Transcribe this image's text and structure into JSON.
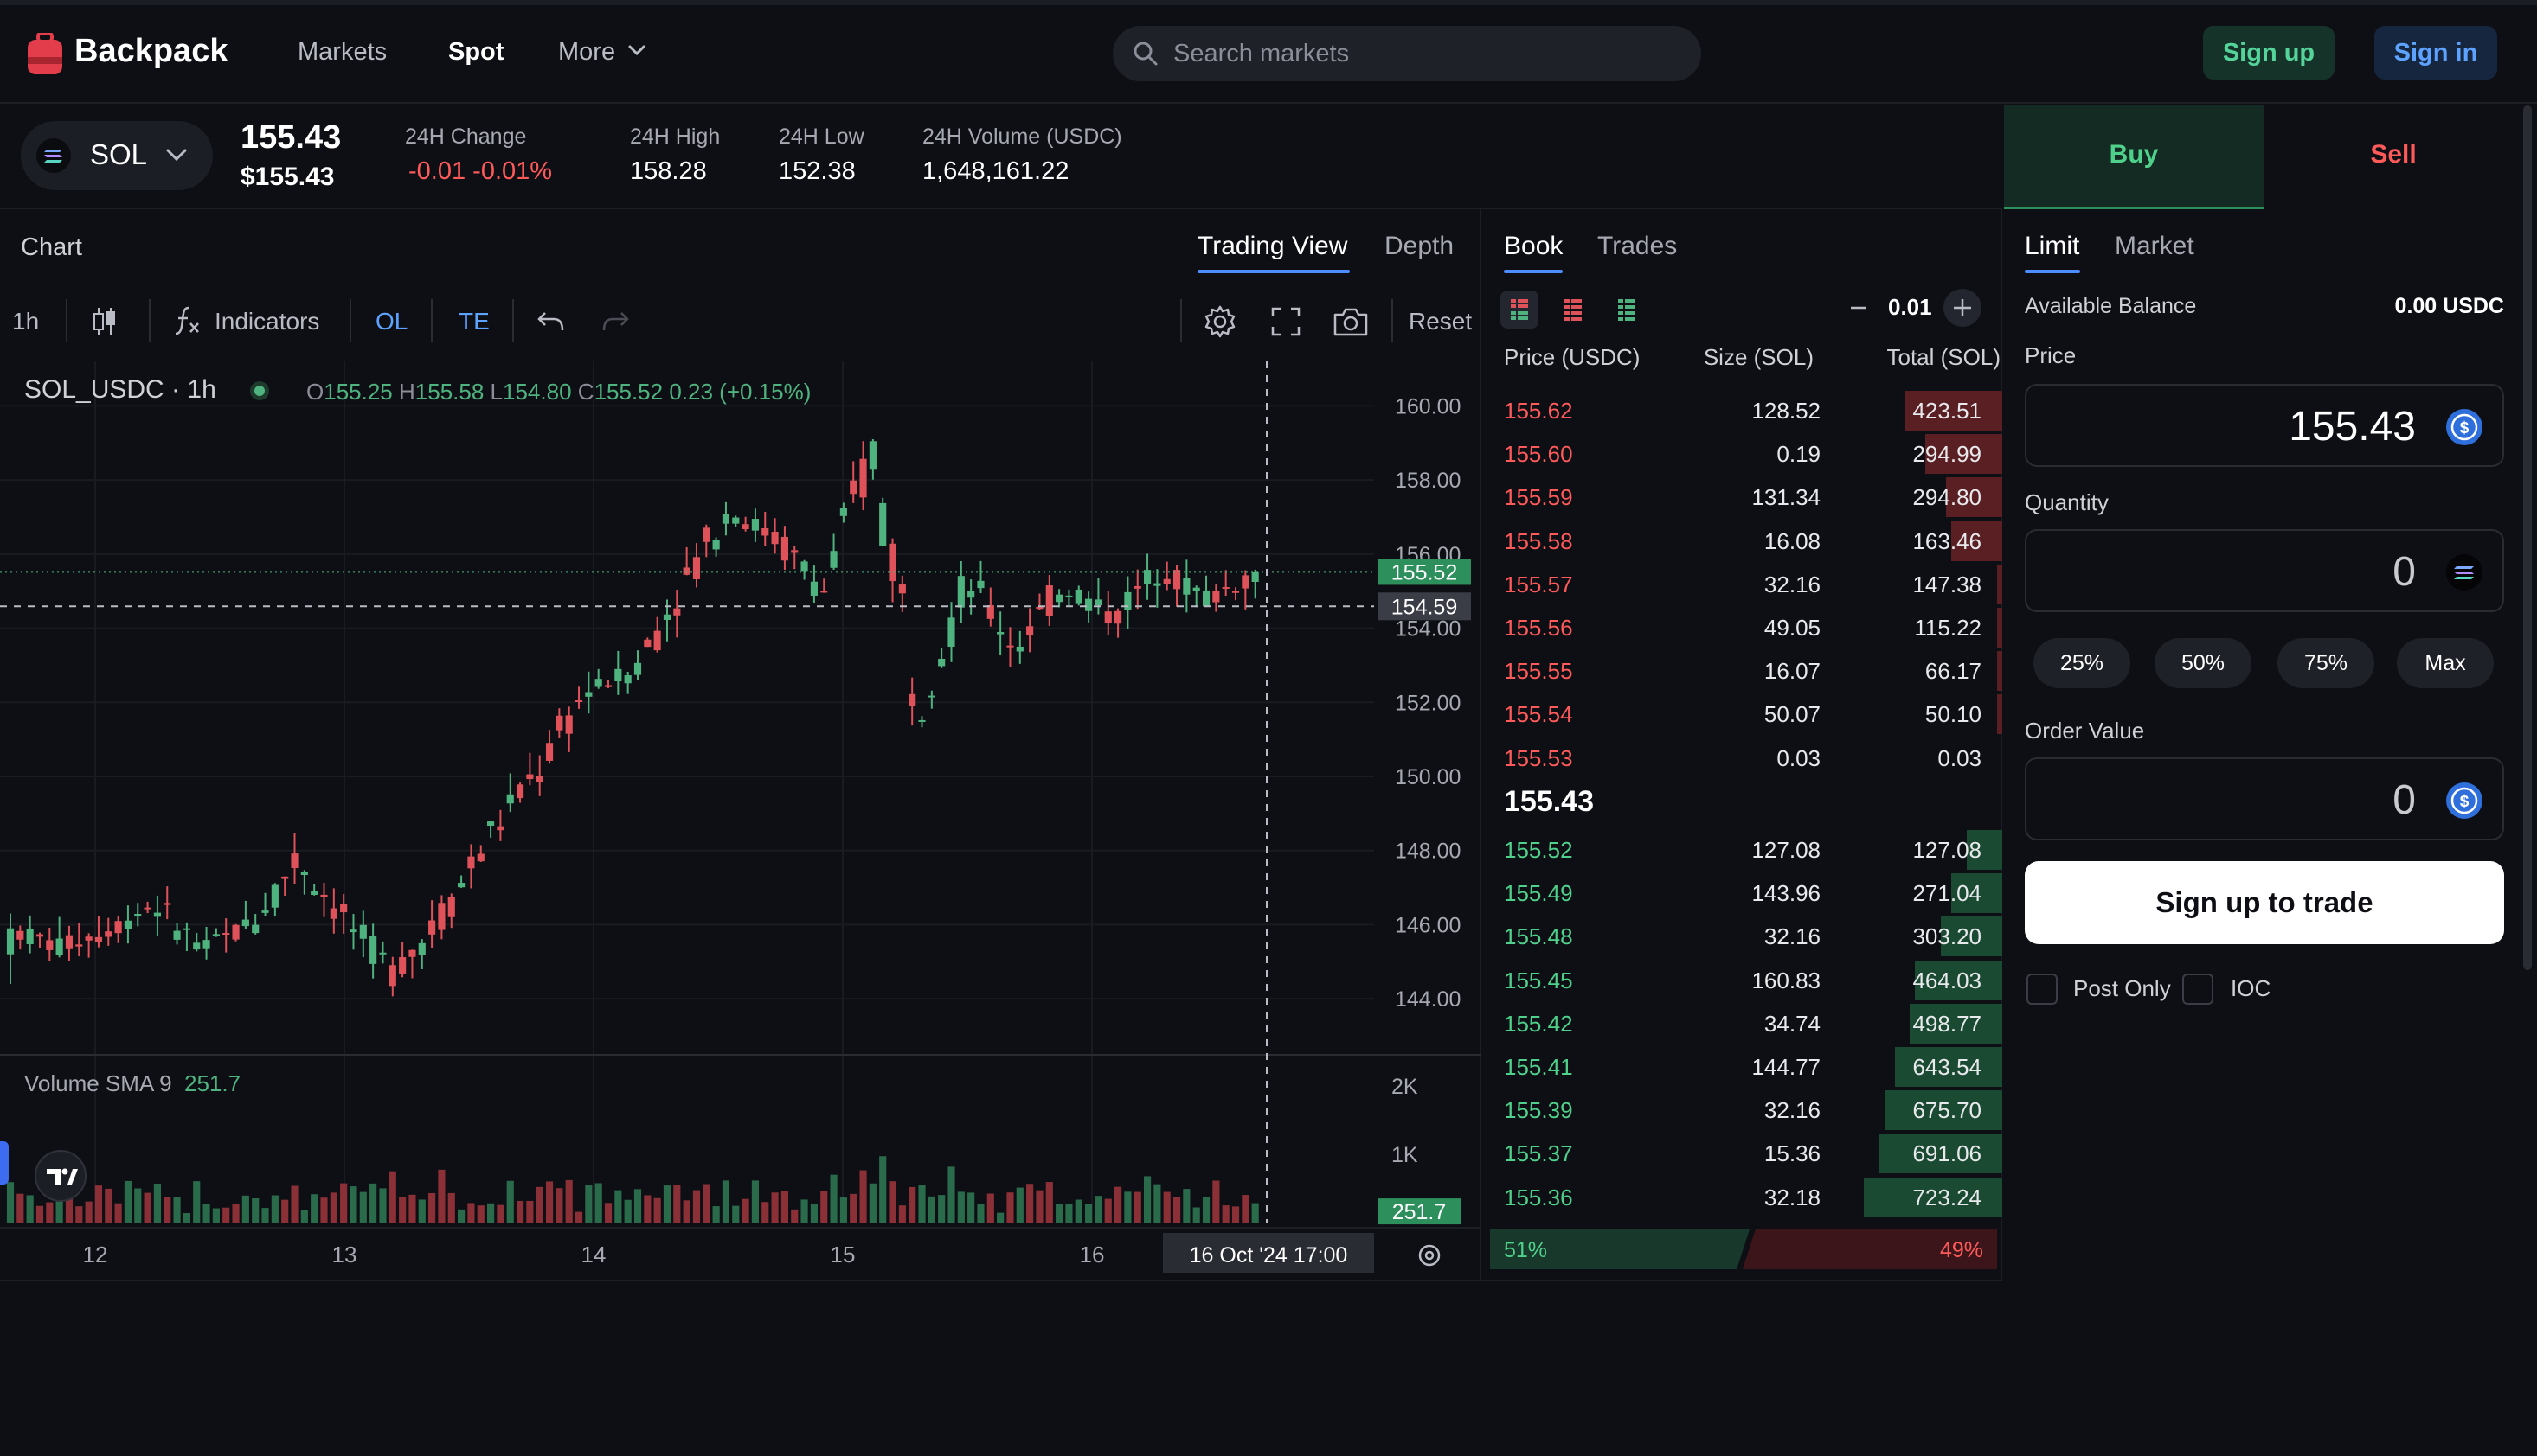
{
  "colors": {
    "background": "#0e0f14",
    "up": "#4fb37f",
    "down": "#e0525a",
    "accent_blue": "#4b8cff",
    "buy_green": "#4fd18b",
    "sell_red": "#ff5a5a"
  },
  "nav": {
    "brand": "Backpack",
    "logo_icon": "backpack-logo-icon",
    "links": {
      "markets": "Markets",
      "spot": "Spot",
      "more": "More"
    },
    "search_placeholder": "Search markets",
    "signup": "Sign up",
    "signin": "Sign in"
  },
  "ticker": {
    "symbol": "SOL",
    "last_price": "155.43",
    "last_price_usd": "$155.43",
    "change_label": "24H Change",
    "change_value": "-0.01 -0.01%",
    "high_label": "24H High",
    "high_value": "158.28",
    "low_label": "24H Low",
    "low_value": "152.38",
    "volume_label": "24H Volume (USDC)",
    "volume_value": "1,648,161.22"
  },
  "chart": {
    "heading": "Chart",
    "tabs": {
      "trading_view": "Trading View",
      "depth": "Depth"
    },
    "toolbar": {
      "interval": "1h",
      "indicators": "Indicators",
      "ol": "OL",
      "te": "TE",
      "reset": "Reset"
    },
    "legend": {
      "symbol": "SOL_USDC · 1h",
      "o_label": "O",
      "o": "155.25",
      "h_label": "H",
      "h": "155.58",
      "l_label": "L",
      "l": "154.80",
      "c_label": "C",
      "c": "155.52",
      "change": "0.23 (+0.15%)"
    },
    "volume_legend": {
      "name": "Volume SMA 9",
      "value": "251.7"
    },
    "price_ticks": [
      "160.00",
      "158.00",
      "156.00",
      "154.00",
      "152.00",
      "150.00",
      "148.00",
      "146.00",
      "144.00"
    ],
    "volume_ticks": [
      "2K",
      "1K"
    ],
    "current_price_label": "155.52",
    "crosshair_price_label": "154.59",
    "volume_value_label": "251.7",
    "time_ticks": [
      "12",
      "13",
      "14",
      "15",
      "16"
    ],
    "crosshair_time": "16 Oct '24   17:00"
  },
  "chart_data": {
    "type": "candlestick",
    "interval": "1h",
    "ylim": [
      143,
      161.2
    ],
    "volume_ylim": [
      0,
      2200
    ],
    "x_ticks": [
      "12",
      "13",
      "14",
      "15",
      "16"
    ],
    "candle_count": 128,
    "sample_ohlc": [
      {
        "o": 145.2,
        "h": 146.3,
        "l": 144.4,
        "c": 145.9
      },
      {
        "o": 145.9,
        "h": 146.6,
        "l": 145.1,
        "c": 145.4
      },
      {
        "o": 145.4,
        "h": 146.0,
        "l": 144.8,
        "c": 145.8
      },
      {
        "o": 146.0,
        "h": 147.1,
        "l": 145.6,
        "c": 146.6
      },
      {
        "o": 146.6,
        "h": 146.9,
        "l": 145.0,
        "c": 145.3
      },
      {
        "o": 145.3,
        "h": 146.2,
        "l": 144.6,
        "c": 146.0
      },
      {
        "o": 146.0,
        "h": 148.3,
        "l": 145.8,
        "c": 147.8
      },
      {
        "o": 147.8,
        "h": 148.1,
        "l": 145.7,
        "c": 146.1
      },
      {
        "o": 146.1,
        "h": 146.4,
        "l": 144.2,
        "c": 144.7
      },
      {
        "o": 144.7,
        "h": 146.5,
        "l": 144.3,
        "c": 146.2
      },
      {
        "o": 146.2,
        "h": 148.6,
        "l": 146.0,
        "c": 148.4
      },
      {
        "o": 148.4,
        "h": 150.4,
        "l": 147.4,
        "c": 150.1
      },
      {
        "o": 150.1,
        "h": 152.6,
        "l": 149.5,
        "c": 152.3
      },
      {
        "o": 152.3,
        "h": 153.2,
        "l": 151.4,
        "c": 152.8
      },
      {
        "o": 152.8,
        "h": 155.5,
        "l": 152.6,
        "c": 155.1
      },
      {
        "o": 155.1,
        "h": 158.0,
        "l": 154.8,
        "c": 157.2
      },
      {
        "o": 157.2,
        "h": 158.3,
        "l": 156.1,
        "c": 156.4
      },
      {
        "o": 156.4,
        "h": 157.2,
        "l": 154.6,
        "c": 155.0
      },
      {
        "o": 155.0,
        "h": 159.5,
        "l": 152.2,
        "c": 158.8
      },
      {
        "o": 158.8,
        "h": 159.1,
        "l": 151.0,
        "c": 152.1
      },
      {
        "o": 152.1,
        "h": 155.7,
        "l": 151.8,
        "c": 155.3
      },
      {
        "o": 155.3,
        "h": 155.9,
        "l": 153.1,
        "c": 153.5
      },
      {
        "o": 153.5,
        "h": 155.6,
        "l": 153.2,
        "c": 155.2
      },
      {
        "o": 155.2,
        "h": 155.4,
        "l": 153.9,
        "c": 154.3
      },
      {
        "o": 154.3,
        "h": 158.2,
        "l": 154.1,
        "c": 155.6
      },
      {
        "o": 155.6,
        "h": 156.8,
        "l": 154.2,
        "c": 154.8
      },
      {
        "o": 155.25,
        "h": 155.58,
        "l": 154.8,
        "c": 155.52
      }
    ]
  },
  "book": {
    "tabs": {
      "book": "Book",
      "trades": "Trades"
    },
    "tick_size": "0.01",
    "headers": {
      "price": "Price (USDC)",
      "size": "Size (SOL)",
      "total": "Total (SOL)"
    },
    "asks": [
      {
        "price": "155.62",
        "size": "128.52",
        "total": "423.51",
        "depth": 0.19
      },
      {
        "price": "155.60",
        "size": "0.19",
        "total": "294.99",
        "depth": 0.15
      },
      {
        "price": "155.59",
        "size": "131.34",
        "total": "294.80",
        "depth": 0.11
      },
      {
        "price": "155.58",
        "size": "16.08",
        "total": "163.46",
        "depth": 0.1
      },
      {
        "price": "155.57",
        "size": "32.16",
        "total": "147.38",
        "depth": 0.01
      },
      {
        "price": "155.56",
        "size": "49.05",
        "total": "115.22",
        "depth": 0.01
      },
      {
        "price": "155.55",
        "size": "16.07",
        "total": "66.17",
        "depth": 0.01
      },
      {
        "price": "155.54",
        "size": "50.07",
        "total": "50.10",
        "depth": 0.01
      },
      {
        "price": "155.53",
        "size": "0.03",
        "total": "0.03",
        "depth": 0.0
      }
    ],
    "mid_price": "155.43",
    "bids": [
      {
        "price": "155.52",
        "size": "127.08",
        "total": "127.08",
        "depth": 0.07
      },
      {
        "price": "155.49",
        "size": "143.96",
        "total": "271.04",
        "depth": 0.1
      },
      {
        "price": "155.48",
        "size": "32.16",
        "total": "303.20",
        "depth": 0.12
      },
      {
        "price": "155.45",
        "size": "160.83",
        "total": "464.03",
        "depth": 0.17
      },
      {
        "price": "155.42",
        "size": "34.74",
        "total": "498.77",
        "depth": 0.18
      },
      {
        "price": "155.41",
        "size": "144.77",
        "total": "643.54",
        "depth": 0.21
      },
      {
        "price": "155.39",
        "size": "32.16",
        "total": "675.70",
        "depth": 0.23
      },
      {
        "price": "155.37",
        "size": "15.36",
        "total": "691.06",
        "depth": 0.24
      },
      {
        "price": "155.36",
        "size": "32.18",
        "total": "723.24",
        "depth": 0.27
      }
    ],
    "bid_ratio": "51%",
    "ask_ratio": "49%"
  },
  "trade": {
    "buy": "Buy",
    "sell": "Sell",
    "order_types": {
      "limit": "Limit",
      "market": "Market"
    },
    "available_label": "Available Balance",
    "available_value": "0.00 USDC",
    "price_label": "Price",
    "price_value": "155.43",
    "quantity_label": "Quantity",
    "quantity_value": "0",
    "percent_buttons": {
      "p25": "25%",
      "p50": "50%",
      "p75": "75%",
      "max": "Max"
    },
    "order_value_label": "Order Value",
    "order_value": "0",
    "cta": "Sign up to trade",
    "post_only": "Post Only",
    "ioc": "IOC"
  }
}
